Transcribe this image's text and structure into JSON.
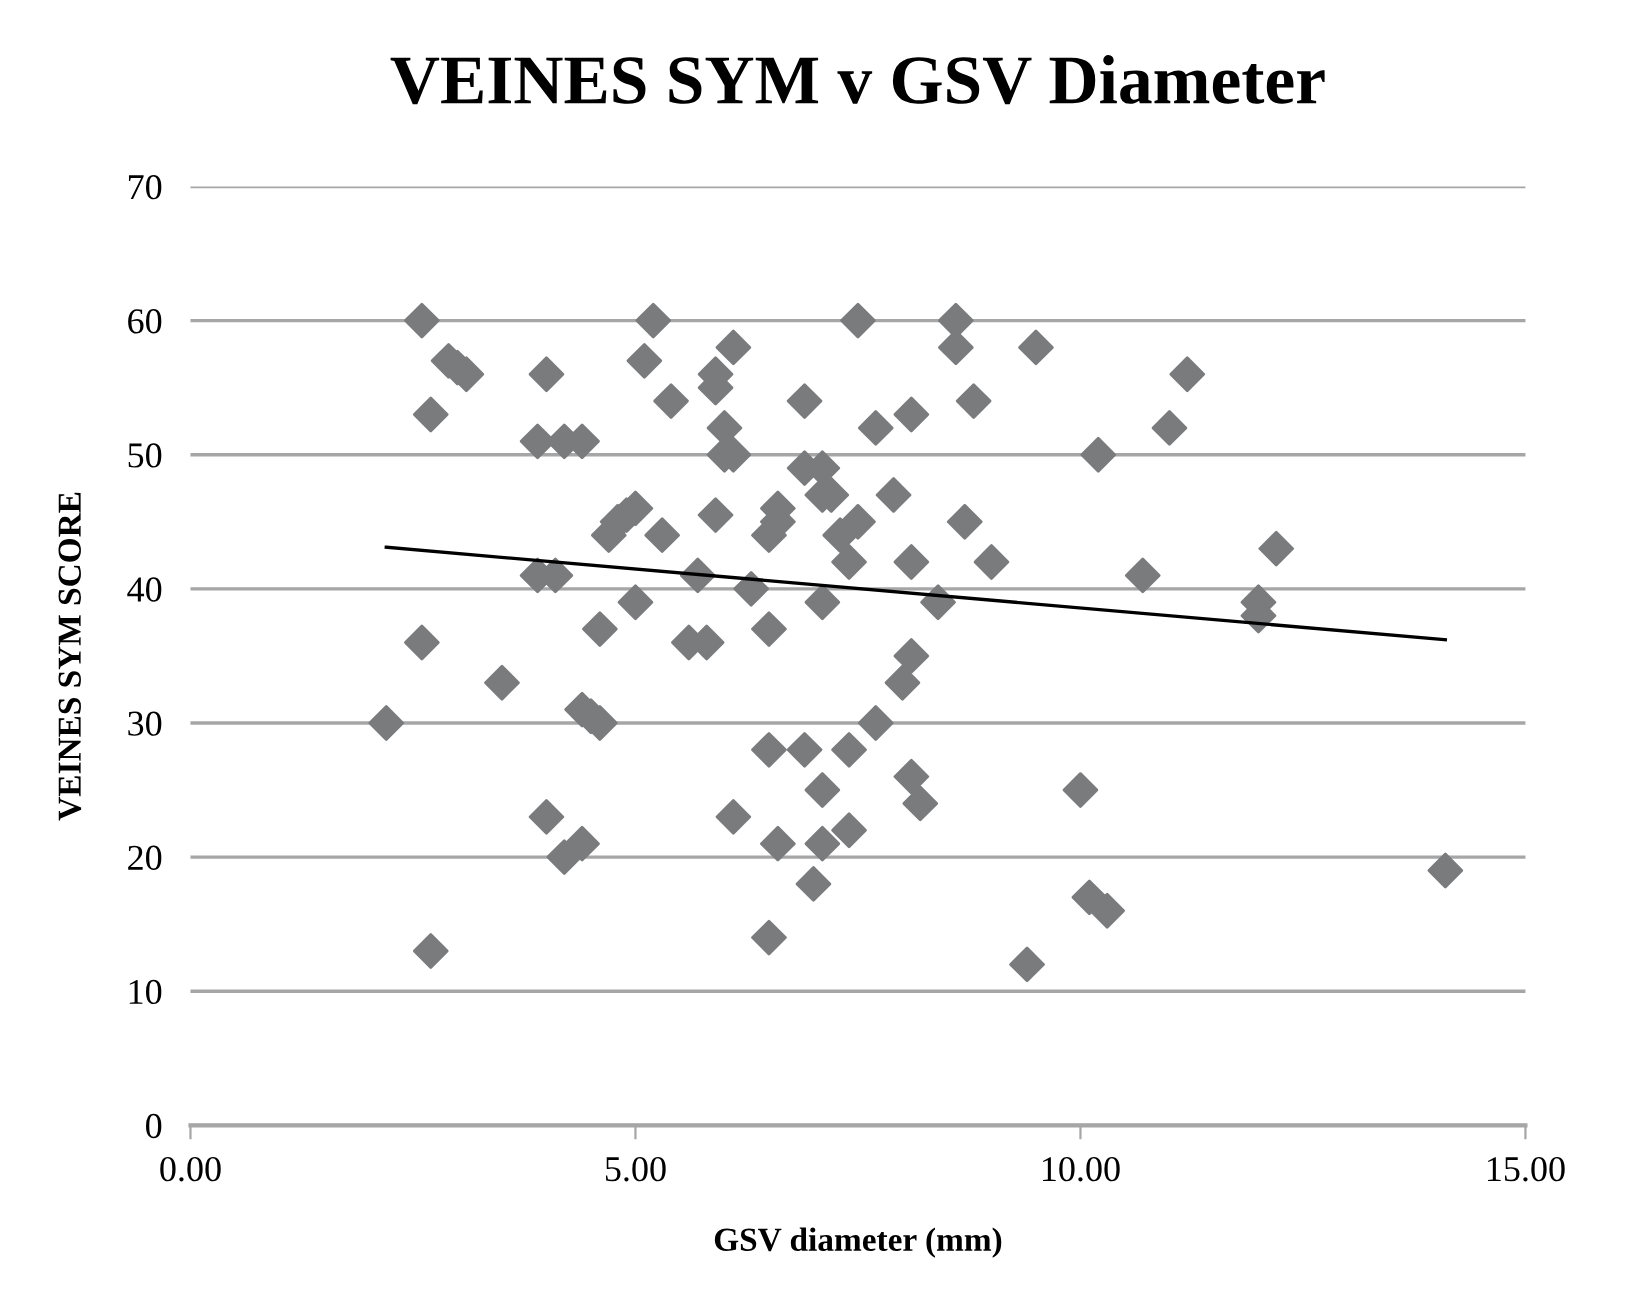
{
  "chart_data": {
    "type": "scatter",
    "title": "VEINES SYM v GSV Diameter",
    "xlabel": "GSV diameter (mm)",
    "ylabel": "VEINES SYM SCORE",
    "xlim": [
      0,
      15
    ],
    "xticks": [
      {
        "value": 0,
        "label": "0.00"
      },
      {
        "value": 5,
        "label": "5.00"
      },
      {
        "value": 10,
        "label": "10.00"
      },
      {
        "value": 15,
        "label": "15.00"
      }
    ],
    "ylim": [
      0,
      70
    ],
    "yticks": [
      0,
      10,
      20,
      30,
      40,
      50,
      60,
      70
    ],
    "grid": "y",
    "legend": false,
    "marker": "diamond",
    "series": [
      {
        "color": "#7a7b7d",
        "x": [
          2.2,
          2.6,
          2.6,
          2.7,
          2.7,
          2.9,
          3.0,
          3.1,
          3.5,
          3.9,
          3.9,
          4.0,
          4.0,
          4.1,
          4.2,
          4.2,
          4.4,
          4.4,
          4.4,
          4.5,
          4.6,
          4.6,
          4.7,
          4.8,
          4.9,
          5.0,
          5.0,
          5.1,
          5.2,
          5.3,
          5.4,
          5.6,
          5.7,
          5.8,
          5.9,
          5.9,
          5.9,
          6.0,
          6.0,
          6.1,
          6.1,
          6.1,
          6.3,
          6.5,
          6.5,
          6.5,
          6.5,
          6.6,
          6.6,
          6.6,
          6.9,
          6.9,
          6.9,
          7.0,
          7.1,
          7.1,
          7.1,
          7.1,
          7.1,
          7.2,
          7.3,
          7.4,
          7.4,
          7.4,
          7.5,
          7.5,
          7.7,
          7.7,
          7.9,
          8.0,
          8.1,
          8.1,
          8.1,
          8.1,
          8.2,
          8.4,
          8.6,
          8.6,
          8.7,
          8.8,
          9.0,
          9.4,
          9.5,
          10.0,
          10.1,
          10.2,
          10.3,
          10.7,
          11.0,
          11.2,
          12.0,
          12.0,
          12.2,
          14.1
        ],
        "values": [
          30,
          60,
          36,
          53,
          13,
          57,
          56.5,
          56,
          33,
          51,
          41,
          56,
          23,
          41,
          51,
          20,
          51,
          31,
          21,
          30.5,
          30,
          37,
          44,
          45,
          45.5,
          46,
          39,
          57,
          60,
          44,
          54,
          36,
          41,
          36,
          45.5,
          55,
          56,
          52,
          50,
          50,
          58,
          23,
          40,
          44,
          37,
          28,
          14,
          45,
          46,
          21,
          54,
          49,
          28,
          18,
          49,
          47,
          39,
          25,
          21,
          47,
          44,
          42,
          28,
          22,
          60,
          45,
          52,
          30,
          47,
          33,
          53,
          42,
          35,
          26,
          24,
          39,
          60,
          58,
          45,
          54,
          42,
          12,
          58,
          25,
          17,
          50,
          16,
          41,
          52,
          56,
          39,
          38,
          43,
          19
        ]
      },
      {
        "type": "line",
        "color": "#000000",
        "marker": "none",
        "x": [
          2.2,
          14.1
        ],
        "values": [
          43.1,
          36.2
        ]
      }
    ]
  }
}
